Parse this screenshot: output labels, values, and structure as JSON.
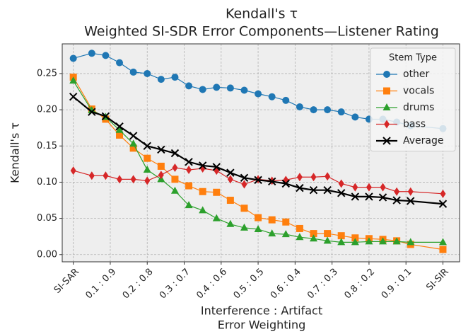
{
  "chart_data": {
    "type": "line",
    "title": "Kendall's τ",
    "subtitle": "Weighted SI-SDR Error Components—Listener Rating",
    "xlabel": [
      "Interference : Artifact",
      "Error Weighting"
    ],
    "ylabel": "Kendall's τ",
    "x": [
      0,
      0.05,
      0.0875,
      0.125,
      0.1625,
      0.2,
      0.2375,
      0.275,
      0.3125,
      0.35,
      0.3875,
      0.425,
      0.4625,
      0.5,
      0.5375,
      0.575,
      0.6125,
      0.65,
      0.6875,
      0.725,
      0.7625,
      0.8,
      0.8375,
      0.875,
      0.9125,
      1
    ],
    "series": [
      {
        "name": "other",
        "color": "#1f77b4",
        "marker": "circle",
        "values": [
          0.271,
          0.278,
          0.275,
          0.265,
          0.252,
          0.25,
          0.242,
          0.245,
          0.233,
          0.228,
          0.231,
          0.23,
          0.227,
          0.222,
          0.218,
          0.213,
          0.204,
          0.2,
          0.2,
          0.197,
          0.19,
          0.187,
          0.187,
          0.183,
          0.178,
          0.174
        ]
      },
      {
        "name": "vocals",
        "color": "#ff7f0e",
        "marker": "square",
        "values": [
          0.245,
          0.201,
          0.187,
          0.165,
          0.147,
          0.133,
          0.122,
          0.104,
          0.095,
          0.087,
          0.086,
          0.075,
          0.064,
          0.051,
          0.048,
          0.045,
          0.036,
          0.029,
          0.029,
          0.026,
          0.023,
          0.022,
          0.021,
          0.019,
          0.014,
          0.007
        ]
      },
      {
        "name": "drums",
        "color": "#2ca02c",
        "marker": "triangle",
        "values": [
          0.24,
          0.199,
          0.19,
          0.172,
          0.153,
          0.117,
          0.104,
          0.088,
          0.068,
          0.061,
          0.05,
          0.042,
          0.037,
          0.035,
          0.029,
          0.028,
          0.024,
          0.022,
          0.019,
          0.017,
          0.017,
          0.018,
          0.018,
          0.018,
          0.017,
          0.017
        ]
      },
      {
        "name": "bass",
        "color": "#d62728",
        "marker": "diamond",
        "values": [
          0.116,
          0.109,
          0.109,
          0.104,
          0.104,
          0.102,
          0.11,
          0.12,
          0.117,
          0.119,
          0.116,
          0.104,
          0.097,
          0.104,
          0.102,
          0.103,
          0.107,
          0.107,
          0.108,
          0.098,
          0.093,
          0.093,
          0.093,
          0.087,
          0.087,
          0.084
        ]
      },
      {
        "name": "Average",
        "color": "#000000",
        "marker": "x",
        "values": [
          0.218,
          0.197,
          0.191,
          0.177,
          0.164,
          0.15,
          0.145,
          0.14,
          0.128,
          0.123,
          0.121,
          0.113,
          0.106,
          0.103,
          0.101,
          0.098,
          0.092,
          0.089,
          0.089,
          0.085,
          0.08,
          0.08,
          0.079,
          0.075,
          0.074,
          0.07
        ]
      }
    ],
    "xlim": [
      -0.03,
      1.045
    ],
    "ylim": [
      -0.01,
      0.291
    ],
    "xticks": [
      {
        "value": 0,
        "label": "SI-SAR"
      },
      {
        "value": 0.1,
        "label": "0.1 : 0.9"
      },
      {
        "value": 0.2,
        "label": "0.2 : 0.8"
      },
      {
        "value": 0.3,
        "label": "0.3 : 0.7"
      },
      {
        "value": 0.4,
        "label": "0.4 : 0.6"
      },
      {
        "value": 0.5,
        "label": "0.5 : 0.5"
      },
      {
        "value": 0.6,
        "label": "0.6 : 0.4"
      },
      {
        "value": 0.7,
        "label": "0.7 : 0.3"
      },
      {
        "value": 0.8,
        "label": "0.8 : 0.2"
      },
      {
        "value": 0.9,
        "label": "0.9 : 0.1"
      },
      {
        "value": 1,
        "label": "SI-SIR"
      }
    ],
    "yticks": [
      {
        "value": 0,
        "label": "0.00"
      },
      {
        "value": 0.05,
        "label": "0.05"
      },
      {
        "value": 0.1,
        "label": "0.10"
      },
      {
        "value": 0.15,
        "label": "0.15"
      },
      {
        "value": 0.2,
        "label": "0.20"
      },
      {
        "value": 0.25,
        "label": "0.25"
      }
    ],
    "grid": true,
    "legend": {
      "title": "Stem Type",
      "position": "upper right"
    }
  }
}
